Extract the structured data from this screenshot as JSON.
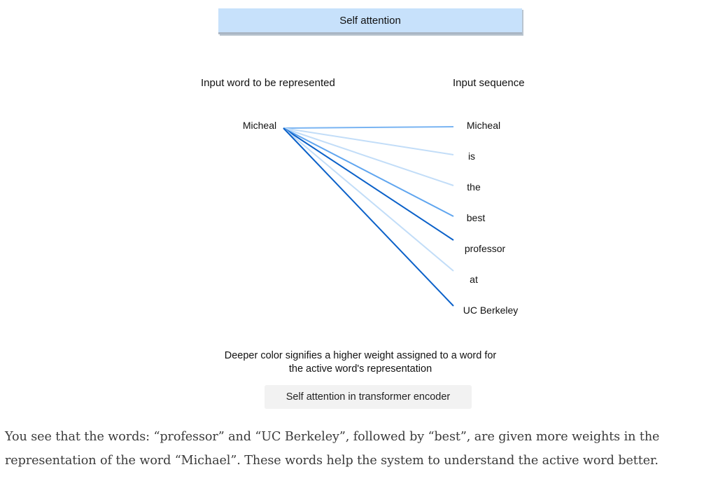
{
  "diagram": {
    "title": "Self attention",
    "left_header": "Input word to be represented",
    "right_header": "Input sequence",
    "source_word": "Micheal",
    "sequence": [
      {
        "word": "Micheal",
        "color": "#79b4f2"
      },
      {
        "word": "is",
        "color": "#c2ddf8"
      },
      {
        "word": "the",
        "color": "#c2ddf8"
      },
      {
        "word": "best",
        "color": "#5fa5ef"
      },
      {
        "word": "professor",
        "color": "#0b61c9"
      },
      {
        "word": "at",
        "color": "#c2ddf8"
      },
      {
        "word": "UC Berkeley",
        "color": "#0b61c9"
      }
    ],
    "note": "Deeper color signifies a higher weight assigned to a word for the active word's representation"
  },
  "caption": "Self attention in transformer encoder",
  "paragraph": "You see that the words: “professor” and “UC Berkeley”, followed by “best”, are given more weights in the representation of the word “Michael”. These words help the system to understand the active word better."
}
